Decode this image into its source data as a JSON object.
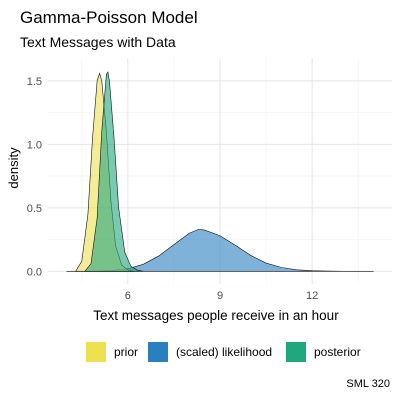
{
  "chart_data": {
    "type": "area",
    "title": "Gamma-Poisson Model",
    "subtitle": "Text Messages with Data",
    "xlabel": "Text messages people receive in an hour",
    "ylabel": "density",
    "xlim": [
      3.4,
      14.6
    ],
    "ylim": [
      -0.1,
      1.68
    ],
    "xticks": [
      6,
      9,
      12
    ],
    "yticks": [
      0.0,
      0.5,
      1.0,
      1.5
    ],
    "ytick_labels": [
      "0.0",
      "0.5",
      "1.0",
      "1.5"
    ],
    "grid": true,
    "legend_position": "bottom",
    "caption": "SML 320",
    "series": [
      {
        "name": "(scaled) likelihood",
        "color": "#2A7FBF",
        "x": [
          4.0,
          5.0,
          5.5,
          6.0,
          6.5,
          7.0,
          7.5,
          8.0,
          8.3,
          8.5,
          9.0,
          9.5,
          10.0,
          10.5,
          11.0,
          11.5,
          12.0,
          12.5,
          13.0,
          14.0
        ],
        "y": [
          0.0,
          0.002,
          0.006,
          0.02,
          0.055,
          0.12,
          0.21,
          0.3,
          0.33,
          0.325,
          0.28,
          0.205,
          0.125,
          0.065,
          0.03,
          0.012,
          0.005,
          0.002,
          0.0,
          0.0
        ]
      },
      {
        "name": "prior",
        "color": "#EDE051",
        "x": [
          4.3,
          4.5,
          4.7,
          4.85,
          5.0,
          5.08,
          5.15,
          5.3,
          5.45,
          5.6,
          5.8,
          6.0,
          6.2
        ],
        "y": [
          0.0,
          0.08,
          0.45,
          1.05,
          1.5,
          1.56,
          1.5,
          1.1,
          0.55,
          0.2,
          0.05,
          0.01,
          0.0
        ]
      },
      {
        "name": "posterior",
        "color": "#21A77E",
        "x": [
          4.6,
          4.8,
          5.0,
          5.15,
          5.3,
          5.35,
          5.4,
          5.55,
          5.7,
          5.9,
          6.1,
          6.3,
          6.5
        ],
        "y": [
          0.0,
          0.06,
          0.42,
          1.1,
          1.55,
          1.57,
          1.5,
          1.05,
          0.5,
          0.15,
          0.04,
          0.01,
          0.0
        ]
      }
    ]
  },
  "legend": {
    "items": [
      {
        "label": "prior",
        "color": "#EDE051"
      },
      {
        "label": "(scaled) likelihood",
        "color": "#2A7FBF"
      },
      {
        "label": "posterior",
        "color": "#21A77E"
      }
    ]
  }
}
